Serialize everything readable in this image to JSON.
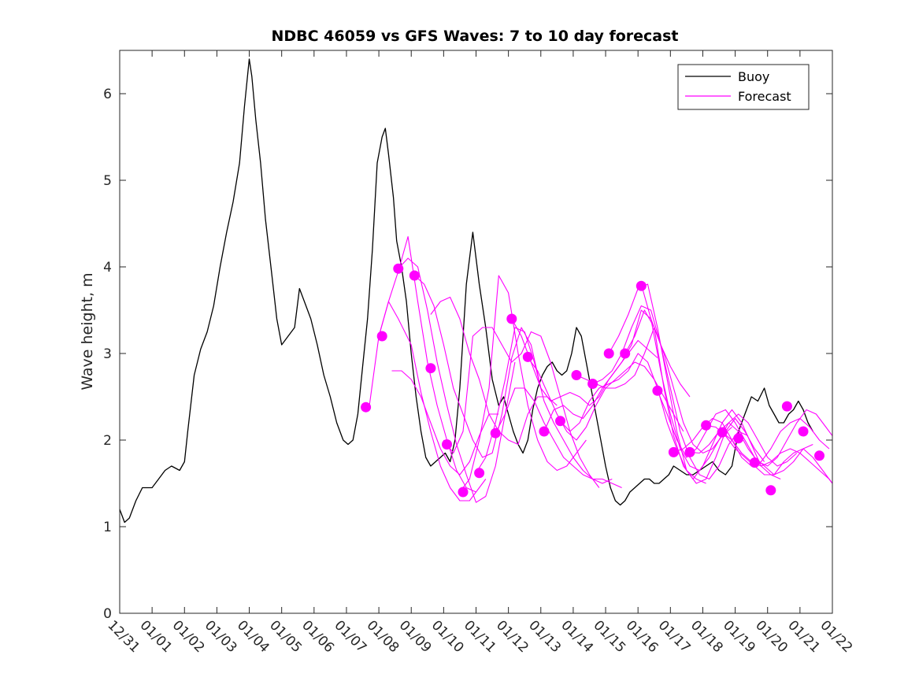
{
  "chart_data": {
    "type": "line",
    "title": "NDBC 46059 vs GFS Waves: 7 to 10 day forecast",
    "xlabel": "",
    "ylabel": "Wave height, m",
    "xlim": [
      0,
      22
    ],
    "ylim": [
      0,
      6.5
    ],
    "xticks": [
      0,
      1,
      2,
      3,
      4,
      5,
      6,
      7,
      8,
      9,
      10,
      11,
      12,
      13,
      14,
      15,
      16,
      17,
      18,
      19,
      20,
      21,
      22
    ],
    "xtick_labels": [
      "12/31",
      "01/01",
      "01/02",
      "01/03",
      "01/04",
      "01/05",
      "01/06",
      "01/07",
      "01/08",
      "01/09",
      "01/10",
      "01/11",
      "01/12",
      "01/13",
      "01/14",
      "01/15",
      "01/16",
      "01/17",
      "01/18",
      "01/19",
      "01/20",
      "01/21",
      "01/22"
    ],
    "yticks": [
      0,
      1,
      2,
      3,
      4,
      5,
      6
    ],
    "ytick_labels": [
      "0",
      "1",
      "2",
      "3",
      "4",
      "5",
      "6"
    ],
    "grid": false,
    "legend": {
      "position": "top-right",
      "entries": [
        {
          "label": "Buoy",
          "color": "#000000"
        },
        {
          "label": "Forecast",
          "color": "#ff00ff"
        }
      ]
    },
    "colors": {
      "buoy": "#000000",
      "forecast": "#ff00ff",
      "axes": "#262626"
    },
    "buoy": {
      "name": "Buoy",
      "x": [
        0,
        0.15,
        0.3,
        0.5,
        0.7,
        1.0,
        1.2,
        1.4,
        1.6,
        1.85,
        2.0,
        2.1,
        2.3,
        2.5,
        2.7,
        2.9,
        3.1,
        3.3,
        3.5,
        3.7,
        3.85,
        4.0,
        4.08,
        4.2,
        4.35,
        4.5,
        4.7,
        4.85,
        5.0,
        5.2,
        5.4,
        5.55,
        5.7,
        5.9,
        6.1,
        6.3,
        6.5,
        6.7,
        6.9,
        7.05,
        7.2,
        7.35,
        7.5,
        7.65,
        7.8,
        7.95,
        8.1,
        8.2,
        8.3,
        8.45,
        8.55,
        8.7,
        8.85,
        9.0,
        9.15,
        9.3,
        9.45,
        9.6,
        9.75,
        9.9,
        10.05,
        10.2,
        10.35,
        10.5,
        10.7,
        10.9,
        11.1,
        11.3,
        11.5,
        11.7,
        11.85,
        12.0,
        12.15,
        12.3,
        12.45,
        12.6,
        12.75,
        12.9,
        13.05,
        13.2,
        13.35,
        13.5,
        13.65,
        13.8,
        13.95,
        14.1,
        14.25,
        14.4,
        14.55,
        14.7,
        14.85,
        15.0,
        15.15,
        15.3,
        15.45,
        15.6,
        15.75,
        15.9,
        16.05,
        16.2,
        16.35,
        16.5,
        16.65,
        16.8,
        16.95,
        17.1,
        17.3,
        17.5,
        17.7,
        17.9,
        18.1,
        18.3,
        18.5,
        18.7,
        18.9,
        19.1,
        19.3,
        19.5,
        19.7,
        19.9,
        20.05,
        20.2,
        20.35,
        20.5,
        20.65,
        20.8,
        20.95,
        21.1,
        21.25,
        21.4
      ],
      "values": [
        1.2,
        1.05,
        1.1,
        1.3,
        1.45,
        1.45,
        1.55,
        1.65,
        1.7,
        1.65,
        1.75,
        2.1,
        2.75,
        3.05,
        3.25,
        3.55,
        4.0,
        4.4,
        4.75,
        5.2,
        5.85,
        6.4,
        6.2,
        5.7,
        5.2,
        4.55,
        3.9,
        3.4,
        3.1,
        3.2,
        3.3,
        3.75,
        3.6,
        3.4,
        3.1,
        2.75,
        2.5,
        2.2,
        2.0,
        1.95,
        2.0,
        2.3,
        2.85,
        3.4,
        4.2,
        5.2,
        5.5,
        5.6,
        5.3,
        4.8,
        4.3,
        4.0,
        3.6,
        3.0,
        2.5,
        2.1,
        1.8,
        1.7,
        1.75,
        1.8,
        1.85,
        1.75,
        2.0,
        2.6,
        3.8,
        4.4,
        3.8,
        3.3,
        2.7,
        2.4,
        2.5,
        2.3,
        2.1,
        1.95,
        1.85,
        2.0,
        2.35,
        2.6,
        2.75,
        2.85,
        2.9,
        2.8,
        2.75,
        2.8,
        3.0,
        3.3,
        3.2,
        2.9,
        2.6,
        2.3,
        2.0,
        1.7,
        1.45,
        1.3,
        1.25,
        1.3,
        1.4,
        1.45,
        1.5,
        1.55,
        1.55,
        1.5,
        1.5,
        1.55,
        1.6,
        1.7,
        1.65,
        1.6,
        1.6,
        1.65,
        1.7,
        1.75,
        1.65,
        1.6,
        1.7,
        2.1,
        2.3,
        2.5,
        2.45,
        2.6,
        2.4,
        2.3,
        2.2,
        2.2,
        2.3,
        2.35,
        2.45,
        2.35,
        2.2,
        2.1
      ]
    },
    "forecast_runs": [
      {
        "name": "Forecast",
        "x": [
          7.7,
          8.0,
          8.3,
          8.6,
          9.0,
          9.3,
          9.6,
          9.9,
          10.2,
          10.5,
          10.8,
          11.0
        ],
        "values": [
          2.38,
          3.2,
          3.6,
          3.4,
          3.1,
          2.55,
          2.1,
          1.7,
          1.45,
          1.3,
          1.3,
          1.4
        ]
      },
      {
        "name": "Forecast",
        "x": [
          8.0,
          8.3,
          8.6,
          8.9,
          9.2,
          9.5,
          9.8,
          10.1,
          10.4,
          10.7,
          11.0,
          11.3
        ],
        "values": [
          3.2,
          3.6,
          3.95,
          4.35,
          3.6,
          2.9,
          2.4,
          2.0,
          1.65,
          1.45,
          1.4,
          1.55
        ]
      },
      {
        "name": "Forecast",
        "x": [
          8.4,
          8.7,
          9.0,
          9.3,
          9.6,
          9.9,
          10.2,
          10.5,
          10.8,
          11.1,
          11.4,
          11.7
        ],
        "values": [
          2.8,
          2.8,
          2.7,
          2.5,
          2.2,
          1.9,
          1.7,
          1.6,
          1.75,
          2.05,
          2.3,
          2.3
        ]
      },
      {
        "name": "Forecast",
        "x": [
          8.6,
          8.9,
          9.2,
          9.5,
          9.8,
          10.1,
          10.4,
          10.7,
          11.0,
          11.3,
          11.6,
          11.9,
          12.2
        ],
        "values": [
          3.98,
          4.1,
          4.0,
          3.5,
          2.9,
          2.4,
          1.95,
          1.6,
          1.28,
          1.35,
          1.7,
          2.3,
          2.9
        ]
      },
      {
        "name": "Forecast",
        "x": [
          9.1,
          9.4,
          9.7,
          10.0,
          10.3,
          10.6,
          10.9,
          11.2,
          11.5,
          11.8,
          12.1,
          12.4,
          12.7,
          13.0
        ],
        "values": [
          3.9,
          3.8,
          3.55,
          3.1,
          2.6,
          2.3,
          2.0,
          1.8,
          1.85,
          2.3,
          2.95,
          3.3,
          3.1,
          2.6
        ]
      },
      {
        "name": "Forecast",
        "x": [
          9.6,
          9.9,
          10.2,
          10.5,
          10.8,
          11.1,
          11.4,
          11.7,
          12.0,
          12.3,
          12.6,
          12.9,
          13.2,
          13.5
        ],
        "values": [
          3.45,
          3.6,
          3.65,
          3.4,
          3.0,
          2.7,
          2.3,
          2.1,
          2.0,
          1.95,
          2.3,
          2.5,
          2.5,
          2.4
        ]
      },
      {
        "name": "Forecast",
        "x": [
          10.0,
          10.3,
          10.6,
          10.9,
          11.2,
          11.5,
          11.8,
          12.1,
          12.4,
          12.7,
          13.0,
          13.3,
          13.6,
          13.9,
          14.2,
          14.5,
          14.8
        ],
        "values": [
          2.0,
          1.85,
          2.1,
          3.2,
          3.3,
          3.3,
          3.1,
          2.9,
          3.0,
          3.25,
          3.2,
          2.9,
          2.5,
          2.1,
          1.8,
          1.6,
          1.45
        ]
      },
      {
        "name": "Forecast",
        "x": [
          10.5,
          10.8,
          11.1,
          11.4,
          11.7,
          12.0,
          12.3,
          12.6,
          12.9,
          13.2,
          13.5,
          13.8,
          14.1,
          14.4
        ],
        "values": [
          1.4,
          1.55,
          2.0,
          2.6,
          3.9,
          3.7,
          3.0,
          2.4,
          2.0,
          1.75,
          1.65,
          1.7,
          1.85,
          2.0
        ]
      },
      {
        "name": "Forecast",
        "x": [
          11.0,
          11.3,
          11.6,
          11.9,
          12.2,
          12.5,
          12.8,
          13.1,
          13.4,
          13.7,
          14.0,
          14.3,
          14.6,
          14.9,
          15.2
        ],
        "values": [
          1.62,
          1.8,
          2.2,
          2.7,
          3.3,
          3.25,
          2.9,
          2.45,
          2.2,
          2.0,
          1.8,
          1.65,
          1.55,
          1.5,
          1.55
        ]
      },
      {
        "name": "Forecast",
        "x": [
          11.6,
          11.9,
          12.2,
          12.5,
          12.8,
          13.1,
          13.4,
          13.7,
          14.0,
          14.3,
          14.6,
          14.9,
          15.2,
          15.5
        ],
        "values": [
          2.08,
          2.3,
          2.6,
          2.6,
          2.45,
          2.2,
          2.0,
          1.8,
          1.7,
          1.6,
          1.55,
          1.55,
          1.5,
          1.45
        ]
      },
      {
        "name": "Forecast",
        "x": [
          12.1,
          12.4,
          12.7,
          13.0,
          13.3,
          13.6,
          13.9,
          14.2,
          14.5,
          14.8,
          15.1,
          15.4,
          15.7,
          16.0,
          16.3,
          16.6
        ],
        "values": [
          3.4,
          3.2,
          2.9,
          2.6,
          2.45,
          2.5,
          2.55,
          2.5,
          2.4,
          2.5,
          2.7,
          2.85,
          3.0,
          3.15,
          3.05,
          2.95
        ]
      },
      {
        "name": "Forecast",
        "x": [
          12.6,
          12.9,
          13.2,
          13.5,
          13.8,
          14.1,
          14.4,
          14.7,
          15.0,
          15.3,
          15.6,
          15.9,
          16.2,
          16.5,
          16.8,
          17.1,
          17.4
        ],
        "values": [
          2.95,
          2.8,
          2.55,
          2.3,
          2.1,
          2.0,
          2.15,
          2.4,
          2.6,
          2.7,
          2.8,
          2.9,
          2.85,
          2.7,
          2.5,
          2.3,
          2.1
        ]
      },
      {
        "name": "Forecast",
        "x": [
          13.1,
          13.4,
          13.7,
          14.0,
          14.3,
          14.6,
          14.9,
          15.2,
          15.5,
          15.8,
          16.1,
          16.4,
          16.7,
          17.0,
          17.3,
          17.6
        ],
        "values": [
          2.1,
          2.35,
          2.4,
          2.3,
          2.25,
          2.4,
          2.6,
          2.75,
          2.9,
          3.1,
          3.5,
          3.4,
          3.1,
          2.85,
          2.65,
          2.5
        ]
      },
      {
        "name": "Forecast",
        "x": [
          13.6,
          13.9,
          14.2,
          14.5,
          14.8,
          15.1,
          15.4,
          15.7,
          16.0,
          16.3,
          16.6,
          16.9,
          17.2,
          17.5,
          17.8,
          18.1
        ],
        "values": [
          2.22,
          2.1,
          2.2,
          2.45,
          2.6,
          2.65,
          2.7,
          2.8,
          3.0,
          2.9,
          2.6,
          2.2,
          1.9,
          1.65,
          1.55,
          1.5
        ]
      },
      {
        "name": "Forecast",
        "x": [
          14.1,
          14.4,
          14.7,
          15.0,
          15.3,
          15.6,
          15.9,
          16.2,
          16.5,
          16.8,
          17.1,
          17.4,
          17.7,
          18.0,
          18.3,
          18.6,
          18.9
        ],
        "values": [
          2.75,
          2.7,
          2.65,
          2.6,
          2.6,
          2.65,
          2.75,
          3.0,
          3.3,
          3.0,
          2.6,
          2.2,
          1.95,
          1.85,
          1.9,
          2.05,
          2.15
        ]
      },
      {
        "name": "Forecast",
        "x": [
          14.6,
          14.9,
          15.2,
          15.5,
          15.8,
          16.1,
          16.4,
          16.7,
          17.0,
          17.3,
          17.6,
          17.9,
          18.2,
          18.5,
          18.8,
          19.1,
          19.4
        ],
        "values": [
          2.65,
          2.7,
          2.8,
          3.0,
          3.3,
          3.55,
          3.5,
          3.1,
          2.6,
          2.1,
          1.8,
          1.6,
          1.55,
          1.7,
          1.95,
          2.1,
          2.05
        ]
      },
      {
        "name": "Forecast",
        "x": [
          15.1,
          15.4,
          15.7,
          16.0,
          16.3,
          16.6,
          16.9,
          17.2,
          17.5,
          17.8,
          18.1,
          18.4,
          18.7,
          19.0,
          19.3,
          19.6,
          19.9
        ],
        "values": [
          3.0,
          3.2,
          3.45,
          3.75,
          3.8,
          3.3,
          2.7,
          2.1,
          1.65,
          1.5,
          1.55,
          1.8,
          2.1,
          2.25,
          2.1,
          1.9,
          1.75
        ]
      },
      {
        "name": "Forecast",
        "x": [
          15.6,
          15.9,
          16.2,
          16.5,
          16.8,
          17.1,
          17.4,
          17.7,
          18.0,
          18.3,
          18.6,
          18.9,
          19.2,
          19.5,
          19.8,
          20.1,
          20.4
        ],
        "values": [
          3.0,
          3.2,
          3.5,
          3.3,
          2.6,
          2.05,
          1.7,
          1.55,
          1.7,
          1.95,
          2.2,
          2.35,
          2.2,
          1.95,
          1.7,
          1.6,
          1.55
        ]
      },
      {
        "name": "Forecast",
        "x": [
          16.1,
          16.4,
          16.7,
          17.0,
          17.3,
          17.6,
          17.9,
          18.2,
          18.5,
          18.8,
          19.1,
          19.4,
          19.7,
          20.0,
          20.3,
          20.6,
          20.9
        ],
        "values": [
          3.8,
          3.4,
          2.8,
          2.3,
          1.9,
          1.7,
          1.65,
          1.8,
          2.0,
          2.2,
          2.3,
          2.2,
          2.0,
          1.8,
          1.7,
          1.75,
          1.85
        ]
      },
      {
        "name": "Forecast",
        "x": [
          16.6,
          16.9,
          17.2,
          17.5,
          17.8,
          18.1,
          18.4,
          18.7,
          19.0,
          19.3,
          19.6,
          19.9,
          20.2,
          20.5,
          20.8,
          21.1,
          21.4
        ],
        "values": [
          2.57,
          2.3,
          2.0,
          1.8,
          1.9,
          2.1,
          2.3,
          2.35,
          2.2,
          2.0,
          1.8,
          1.7,
          1.6,
          1.65,
          1.75,
          1.9,
          1.95
        ]
      },
      {
        "name": "Forecast",
        "x": [
          17.1,
          17.4,
          17.7,
          18.0,
          18.3,
          18.6,
          18.9,
          19.2,
          19.5,
          19.8,
          20.1,
          20.4,
          20.7,
          21.0,
          21.3,
          21.6,
          21.9
        ],
        "values": [
          1.86,
          1.9,
          2.0,
          2.15,
          2.25,
          2.2,
          2.0,
          1.8,
          1.7,
          1.75,
          1.9,
          2.1,
          2.2,
          2.25,
          2.15,
          2.0,
          1.9
        ]
      },
      {
        "name": "Forecast",
        "x": [
          17.6,
          17.9,
          18.2,
          18.5,
          18.8,
          19.1,
          19.4,
          19.7,
          20.0,
          20.3,
          20.6,
          20.9,
          21.2,
          21.5,
          21.8,
          22.0
        ],
        "values": [
          1.86,
          1.85,
          1.95,
          2.1,
          2.2,
          2.1,
          1.9,
          1.75,
          1.7,
          1.8,
          2.0,
          2.2,
          2.35,
          2.3,
          2.15,
          2.05
        ]
      },
      {
        "name": "Forecast",
        "x": [
          18.1,
          18.4,
          18.7,
          19.0,
          19.3,
          19.6,
          19.9,
          20.2,
          20.5,
          20.8,
          21.1,
          21.4,
          21.7,
          22.0
        ],
        "values": [
          2.17,
          2.15,
          2.05,
          1.9,
          1.8,
          1.7,
          1.6,
          1.6,
          1.75,
          1.85,
          1.9,
          1.8,
          1.65,
          1.5
        ]
      },
      {
        "name": "Forecast",
        "x": [
          18.6,
          18.9,
          19.2,
          19.5,
          19.8,
          20.1,
          20.4,
          20.7,
          21.0,
          21.3,
          21.6,
          21.9,
          22.0
        ],
        "values": [
          2.09,
          2.0,
          1.85,
          1.75,
          1.7,
          1.75,
          1.85,
          1.9,
          1.85,
          1.75,
          1.65,
          1.55,
          1.5
        ]
      }
    ],
    "forecast_points": {
      "name": "Forecast",
      "x": [
        7.6,
        8.1,
        8.6,
        9.1,
        9.6,
        10.1,
        10.6,
        11.1,
        11.6,
        12.1,
        12.6,
        13.1,
        13.6,
        14.1,
        14.6,
        15.1,
        15.6,
        16.1,
        16.6,
        17.1,
        17.6,
        18.1,
        18.6,
        19.1,
        19.6,
        20.1,
        20.6,
        21.1,
        21.6
      ],
      "values": [
        2.38,
        3.2,
        3.98,
        3.9,
        2.83,
        1.95,
        1.4,
        1.62,
        2.08,
        3.4,
        2.96,
        2.1,
        2.22,
        2.75,
        2.65,
        3.0,
        3.0,
        3.78,
        2.57,
        1.86,
        1.86,
        2.17,
        2.09,
        2.02,
        1.74,
        1.42,
        2.39,
        2.1,
        1.82
      ]
    }
  }
}
